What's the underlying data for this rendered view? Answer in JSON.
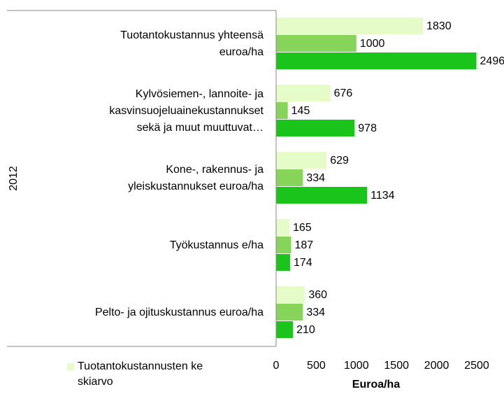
{
  "chart_data": {
    "type": "bar",
    "orientation": "horizontal",
    "y_axis_label": "2012",
    "x_axis_label": "Euroa/ha",
    "categories": [
      [
        "Tuotantokustannus yhteensä",
        "euroa/ha"
      ],
      [
        "Kylvösiemen-, lannoite- ja",
        "kasvinsuojeluainekustannukset",
        "sekä ja muut muuttuvat…"
      ],
      [
        "Kone-, rakennus- ja",
        "yleiskustannukset euroa/ha"
      ],
      [
        "Työkustannus e/ha"
      ],
      [
        "Pelto- ja ojituskustannus euroa/ha"
      ]
    ],
    "series": [
      {
        "name": "Tuotantokustannusten keskiarvo",
        "color": "#e5fcc9",
        "values": [
          1830,
          676,
          629,
          165,
          360
        ]
      },
      {
        "color": "#86d45a",
        "values": [
          1000,
          145,
          334,
          187,
          334
        ]
      },
      {
        "color": "#1bc41b",
        "values": [
          2496,
          978,
          1134,
          174,
          210
        ]
      }
    ],
    "xlim": [
      0,
      2500
    ],
    "xticks": [
      0,
      500,
      1000,
      1500,
      2000,
      2500
    ],
    "legend": "bottom-left"
  }
}
